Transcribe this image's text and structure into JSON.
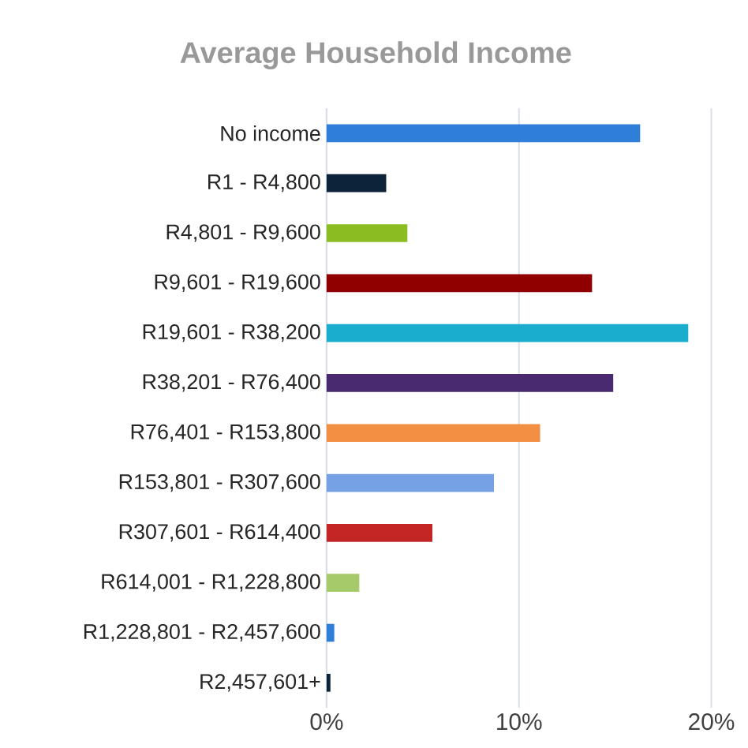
{
  "chart_data": {
    "type": "bar",
    "orientation": "horizontal",
    "title": "Average Household Income",
    "categories": [
      "No income",
      "R1 - R4,800",
      "R4,801 - R9,600",
      "R9,601 - R19,600",
      "R19,601 - R38,200",
      "R38,201 - R76,400",
      "R76,401 - R153,800",
      "R153,801 - R307,600",
      "R307,601 - R614,400",
      "R614,001 - R1,228,800",
      "R1,228,801 - R2,457,600",
      "R2,457,601+"
    ],
    "values": [
      16.3,
      3.1,
      4.2,
      13.8,
      18.8,
      14.9,
      11.1,
      8.7,
      5.5,
      1.7,
      0.4,
      0.2
    ],
    "colors": [
      "#2f7ed8",
      "#0d233a",
      "#8bbc21",
      "#910000",
      "#1aadce",
      "#492970",
      "#f28f43",
      "#77a1e5",
      "#c42525",
      "#a6c96a",
      "#2f7ed8",
      "#0d233a"
    ],
    "xlim": [
      0,
      20
    ],
    "xticks": [
      {
        "value": 0,
        "label": "0%"
      },
      {
        "value": 10,
        "label": "10%"
      },
      {
        "value": 20,
        "label": "20%"
      }
    ],
    "grid": "x"
  }
}
